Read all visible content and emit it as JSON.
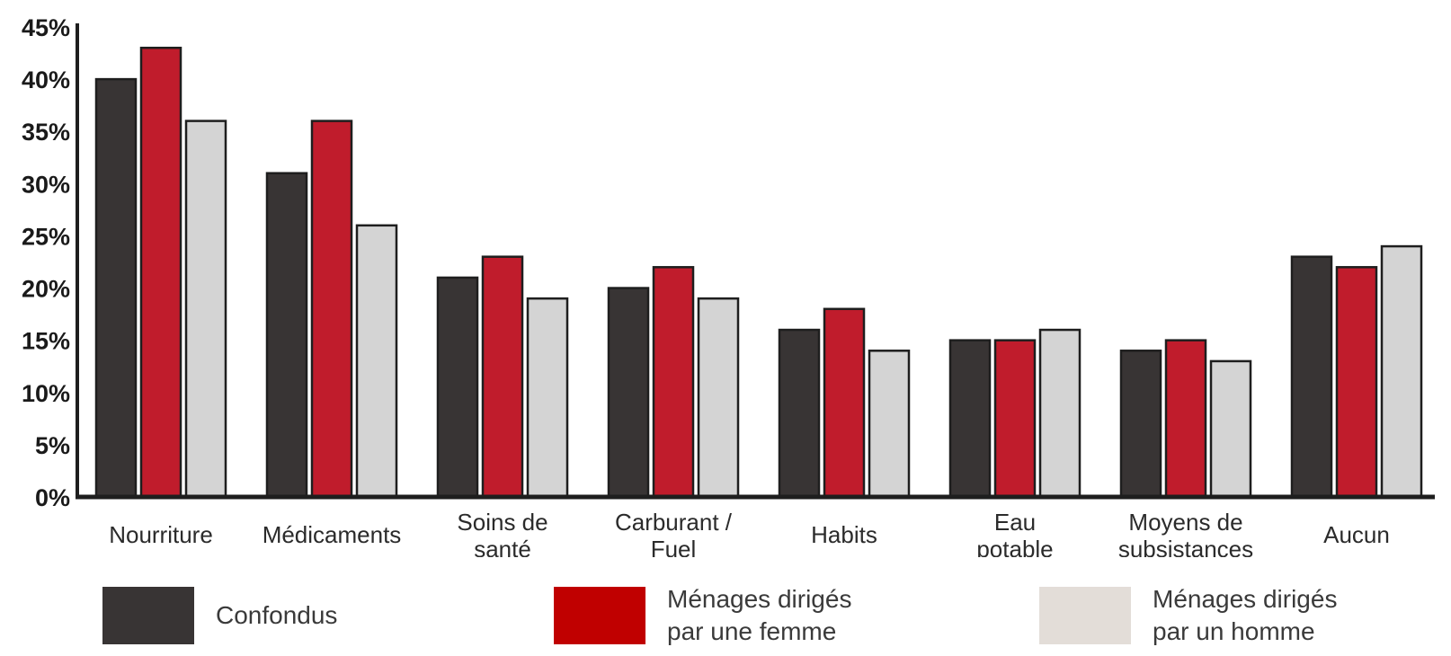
{
  "chart_data": {
    "type": "bar",
    "categories": [
      "Nourriture",
      "Médicaments",
      "Soins de\nsanté",
      "Carburant /\nFuel",
      "Habits",
      "Eau\npotable",
      "Moyens de\nsubsistances",
      "Aucun"
    ],
    "series": [
      {
        "name": "Confondus",
        "color": "#383434",
        "values": [
          40,
          31,
          21,
          20,
          16,
          15,
          14,
          23
        ]
      },
      {
        "name": "Ménages dirigés\npar une femme",
        "color": "#c01c2c",
        "values": [
          43,
          36,
          23,
          22,
          18,
          15,
          15,
          22
        ]
      },
      {
        "name": "Ménages dirigés\npar un homme",
        "color": "#d4d4d4",
        "values": [
          36,
          26,
          19,
          19,
          14,
          16,
          13,
          24
        ]
      }
    ],
    "yticks": [
      "0%",
      "5%",
      "10%",
      "15%",
      "20%",
      "25%",
      "30%",
      "35%",
      "40%",
      "45%"
    ],
    "ylim": [
      0,
      45
    ],
    "grid": false,
    "legend_position": "bottom"
  },
  "legend": [
    {
      "label": "Confondus",
      "color": "#383434"
    },
    {
      "label": "Ménages dirigés\npar une femme",
      "color": "#c00000"
    },
    {
      "label": "Ménages dirigés\npar un homme",
      "color": "#e3ddd8"
    }
  ]
}
